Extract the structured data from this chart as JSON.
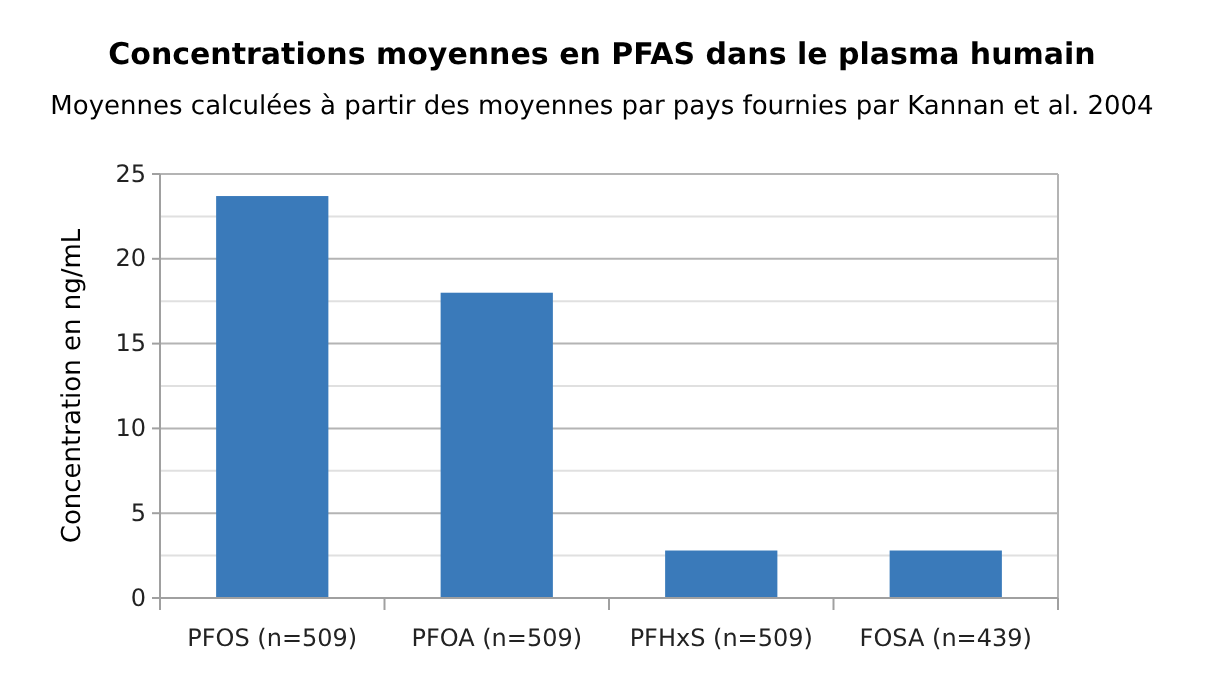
{
  "chart_data": {
    "type": "bar",
    "title": "Concentrations moyennes en PFAS dans le plasma humain",
    "subtitle": "Moyennes calculées à partir des moyennes par pays fournies par Kannan et al. 2004",
    "ylabel": "Concentration en ng/mL",
    "categories": [
      "PFOS (n=509)",
      "PFOA  (n=509)",
      "PFHxS  (n=509)",
      "FOSA (n=439)"
    ],
    "values": [
      23.7,
      18.0,
      2.8,
      2.8
    ],
    "color": "#3a7aba",
    "ylim": [
      0,
      25
    ],
    "yticks": [
      0,
      {
        "value": 2.5,
        "label": null
      },
      5,
      {
        "value": 7.5,
        "label": null
      },
      10,
      {
        "value": 12.5,
        "label": null
      },
      15,
      {
        "value": 17.5,
        "label": null
      },
      20,
      {
        "value": 22.5,
        "label": null
      },
      25
    ],
    "grid": true
  }
}
